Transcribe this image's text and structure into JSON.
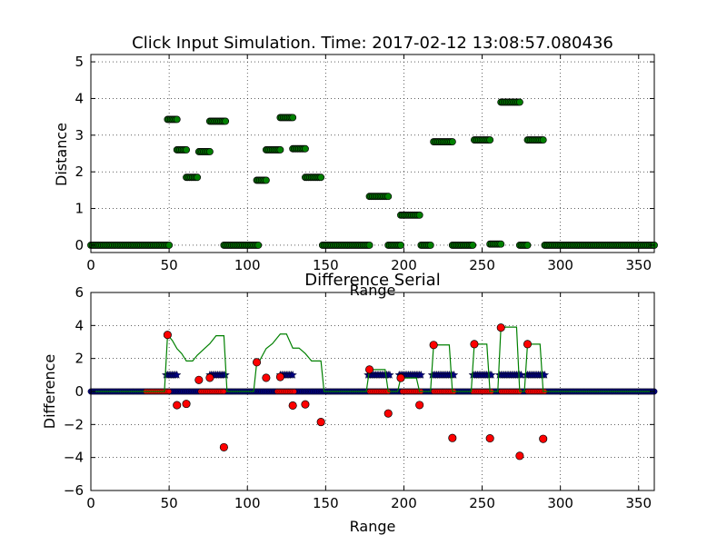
{
  "colors": {
    "background": "#ffffff",
    "grid": "#000000",
    "distance_marker": "#008000",
    "difference_marker": "#ff0000",
    "flag_marker": "#000080",
    "clicked_line": "#008000",
    "series_line": "#0000ff"
  },
  "chart_data": [
    {
      "type": "scatter",
      "title": "Click Input Simulation. Time: 2017-02-12 13:08:57.080436",
      "xlabel": "Range",
      "ylabel": "Distance",
      "xlim": [
        0,
        360
      ],
      "ylim": [
        -0.2,
        5.2
      ],
      "xticks": [
        0,
        50,
        100,
        150,
        200,
        250,
        300,
        350
      ],
      "yticks": [
        0,
        1,
        2,
        3,
        4,
        5
      ],
      "grid": true,
      "series": [
        {
          "marker": "circle",
          "color": "#008000",
          "segments": [
            {
              "x": [
                0,
                50
              ],
              "y": 0
            },
            {
              "x": [
                49,
                55
              ],
              "y": 3.43
            },
            {
              "x": [
                55,
                61
              ],
              "y": 2.6
            },
            {
              "x": [
                61,
                68
              ],
              "y": 1.85
            },
            {
              "x": [
                69,
                76
              ],
              "y": 2.55
            },
            {
              "x": [
                76,
                86
              ],
              "y": 3.38
            },
            {
              "x": [
                85,
                107
              ],
              "y": 0
            },
            {
              "x": [
                106,
                112
              ],
              "y": 1.77
            },
            {
              "x": [
                112,
                121
              ],
              "y": 2.6
            },
            {
              "x": [
                121,
                129
              ],
              "y": 3.48
            },
            {
              "x": [
                129,
                137
              ],
              "y": 2.63
            },
            {
              "x": [
                137,
                147
              ],
              "y": 1.85
            },
            {
              "x": [
                148,
                178
              ],
              "y": 0
            },
            {
              "x": [
                178,
                190
              ],
              "y": 1.33
            },
            {
              "x": [
                190,
                198
              ],
              "y": 0
            },
            {
              "x": [
                198,
                210
              ],
              "y": 0.82
            },
            {
              "x": [
                211,
                217
              ],
              "y": 0
            },
            {
              "x": [
                219,
                231
              ],
              "y": 2.82
            },
            {
              "x": [
                231,
                244
              ],
              "y": 0
            },
            {
              "x": [
                245,
                255
              ],
              "y": 2.87
            },
            {
              "x": [
                255,
                262
              ],
              "y": 0.03
            },
            {
              "x": [
                262,
                274
              ],
              "y": 3.9
            },
            {
              "x": [
                274,
                279
              ],
              "y": 0
            },
            {
              "x": [
                279,
                289
              ],
              "y": 2.87
            },
            {
              "x": [
                290,
                360
              ],
              "y": 0
            }
          ]
        }
      ]
    },
    {
      "type": "scatter",
      "title": "Difference Serial",
      "xlabel": "Range",
      "ylabel": "Difference",
      "xlim": [
        0,
        360
      ],
      "ylim": [
        -6,
        6
      ],
      "xticks": [
        0,
        50,
        100,
        150,
        200,
        250,
        300,
        350
      ],
      "yticks": [
        -6,
        -4,
        -2,
        0,
        2,
        4,
        6
      ],
      "grid": true,
      "difference_points": [
        [
          49,
          3.43
        ],
        [
          55,
          -0.83
        ],
        [
          61,
          -0.75
        ],
        [
          69,
          0.7
        ],
        [
          76,
          0.83
        ],
        [
          85,
          -3.38
        ],
        [
          106,
          1.77
        ],
        [
          112,
          0.83
        ],
        [
          121,
          0.88
        ],
        [
          129,
          -0.85
        ],
        [
          137,
          -0.78
        ],
        [
          147,
          -1.85
        ],
        [
          178,
          1.33
        ],
        [
          190,
          -1.33
        ],
        [
          198,
          0.82
        ],
        [
          210,
          -0.82
        ],
        [
          219,
          2.82
        ],
        [
          231,
          -2.82
        ],
        [
          245,
          2.87
        ],
        [
          255,
          -2.84
        ],
        [
          262,
          3.87
        ],
        [
          274,
          -3.9
        ],
        [
          279,
          2.87
        ],
        [
          289,
          -2.87
        ]
      ],
      "flag_segments": [
        {
          "x": [
            48,
            55
          ],
          "y": 1
        },
        {
          "x": [
            76,
            86
          ],
          "y": 1
        },
        {
          "x": [
            121,
            129
          ],
          "y": 1
        },
        {
          "x": [
            177,
            191
          ],
          "y": 1
        },
        {
          "x": [
            197,
            211
          ],
          "y": 1
        },
        {
          "x": [
            218,
            232
          ],
          "y": 1
        },
        {
          "x": [
            244,
            256
          ],
          "y": 1
        },
        {
          "x": [
            261,
            275
          ],
          "y": 1
        },
        {
          "x": [
            278,
            290
          ],
          "y": 1
        }
      ],
      "click_segments": [
        {
          "x": [
            35,
            50
          ],
          "y": 0
        },
        {
          "x": [
            70,
            85
          ],
          "y": 0
        },
        {
          "x": [
            119,
            130
          ],
          "y": 0
        },
        {
          "x": [
            178,
            190
          ],
          "y": 0
        },
        {
          "x": [
            199,
            211
          ],
          "y": 0
        },
        {
          "x": [
            219,
            232
          ],
          "y": 0
        },
        {
          "x": [
            244,
            256
          ],
          "y": 0
        },
        {
          "x": [
            262,
            274
          ],
          "y": 0
        },
        {
          "x": [
            279,
            290
          ],
          "y": 0
        }
      ],
      "series_line": {
        "x": [
          0,
          360
        ],
        "y": 0
      },
      "distance_line": {
        "x": [
          0,
          47,
          49,
          52,
          55,
          58,
          61,
          65,
          68,
          72,
          76,
          80,
          85,
          87,
          104,
          106,
          108,
          112,
          116,
          121,
          125,
          129,
          133,
          137,
          141,
          145,
          147,
          149,
          176,
          178,
          188,
          190,
          196,
          198,
          208,
          210,
          217,
          219,
          229,
          231,
          243,
          245,
          253,
          255,
          260,
          262,
          272,
          274,
          277,
          279,
          287,
          289,
          360
        ],
        "y": [
          0,
          0,
          3.43,
          3.1,
          2.6,
          2.3,
          1.85,
          1.85,
          2.2,
          2.55,
          2.9,
          3.38,
          3.38,
          0,
          0,
          1.77,
          1.9,
          2.6,
          2.9,
          3.48,
          3.48,
          2.63,
          2.63,
          2.3,
          1.85,
          1.85,
          1.85,
          0,
          0,
          1.33,
          1.33,
          0,
          0,
          0.82,
          0.82,
          0,
          0,
          2.82,
          2.82,
          0,
          0,
          2.87,
          2.87,
          0,
          0,
          3.9,
          3.9,
          0,
          0,
          2.87,
          2.87,
          0,
          0
        ]
      }
    }
  ]
}
